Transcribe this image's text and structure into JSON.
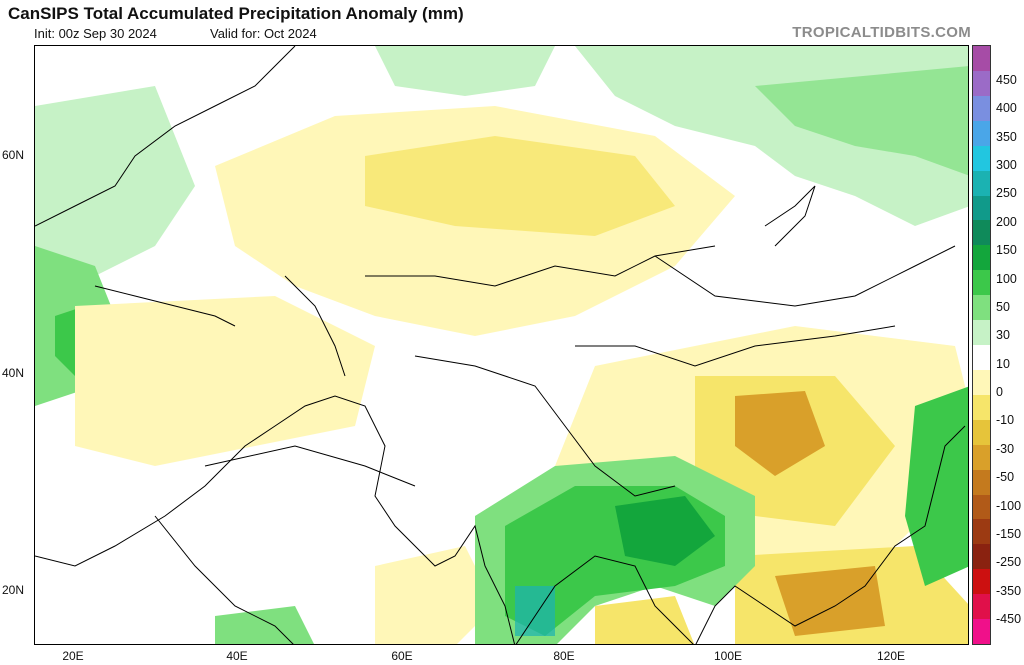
{
  "header": {
    "title": "CanSIPS Total Accumulated Precipitation Anomaly (mm)",
    "init": "Init: 00z Sep 30 2024",
    "valid": "Valid for: Oct 2024",
    "brand": "TROPICALTIDBITS.COM"
  },
  "axes": {
    "lat_labels": [
      "60N",
      "40N",
      "20N"
    ],
    "lon_labels": [
      "20E",
      "40E",
      "60E",
      "80E",
      "100E",
      "120E"
    ]
  },
  "legend": {
    "labels": [
      "450",
      "400",
      "350",
      "300",
      "250",
      "200",
      "150",
      "100",
      "50",
      "30",
      "10",
      "0",
      "-10",
      "-30",
      "-50",
      "-100",
      "-150",
      "-250",
      "-350",
      "-450"
    ],
    "colors": [
      "#a64ca6",
      "#9b6bc7",
      "#7a8fe0",
      "#4aa6e8",
      "#22c6e0",
      "#1bb2b2",
      "#109a8a",
      "#0f8a5a",
      "#13a63c",
      "#3cc84a",
      "#7fe07f",
      "#c6f2c6",
      "#ffffff",
      "#fff7b8",
      "#f6e56a",
      "#e6c43a",
      "#d9a02a",
      "#c47a1e",
      "#b15a18",
      "#9c3a12",
      "#8a2210",
      "#cc1010",
      "#e0104a",
      "#f0108a"
    ]
  },
  "map": {
    "region": "South & Central Asia, Middle East, East Asia"
  }
}
